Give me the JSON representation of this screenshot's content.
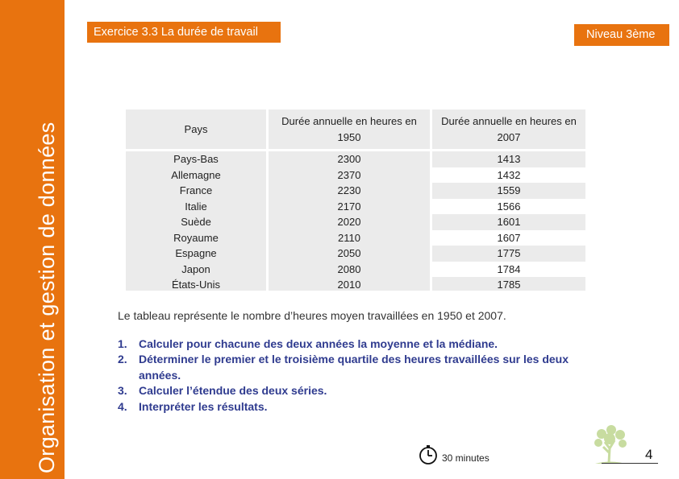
{
  "sidebar": {
    "title": "Organisation et gestion de données"
  },
  "header": {
    "exercise_label": "Exercice 3.3 La durée de travail",
    "level_label": "Niveau 3ème"
  },
  "table": {
    "headers": [
      "Pays",
      "Durée annuelle en heures en 1950",
      "Durée annuelle en heures en 2007"
    ],
    "rows": [
      {
        "country": "Pays-Bas",
        "h1950": "2300",
        "h2007": "1413"
      },
      {
        "country": "Allemagne",
        "h1950": "2370",
        "h2007": "1432"
      },
      {
        "country": "France",
        "h1950": "2230",
        "h2007": "1559"
      },
      {
        "country": "Italie",
        "h1950": "2170",
        "h2007": "1566"
      },
      {
        "country": "Suède",
        "h1950": "2020",
        "h2007": "1601"
      },
      {
        "country": "Royaume",
        "h1950": "2110",
        "h2007": "1607"
      },
      {
        "country": "Espagne",
        "h1950": "2050",
        "h2007": "1775"
      },
      {
        "country": "Japon",
        "h1950": "2080",
        "h2007": "1784"
      },
      {
        "country": "États-Unis",
        "h1950": "2010",
        "h2007": "1785"
      }
    ]
  },
  "description": "Le tableau représente le nombre d’heures moyen travaillées en 1950 et 2007.",
  "questions": [
    {
      "num": "1.",
      "text": "Calculer pour chacune des deux années la moyenne et la médiane."
    },
    {
      "num": "2.",
      "text": "Déterminer le premier et le troisième quartile des heures travaillées sur les deux années."
    },
    {
      "num": "3.",
      "text": "Calculer l’étendue des deux séries."
    },
    {
      "num": "4.",
      "text": "Interpréter les résultats."
    }
  ],
  "timer": {
    "label": "30 minutes",
    "icon": "clock-icon"
  },
  "footer": {
    "page_number": "4",
    "logo_icon": "tree-icon"
  },
  "colors": {
    "accent": "#e8730f",
    "table_bg": "#ebebeb",
    "question_text": "#2f3b8f"
  }
}
